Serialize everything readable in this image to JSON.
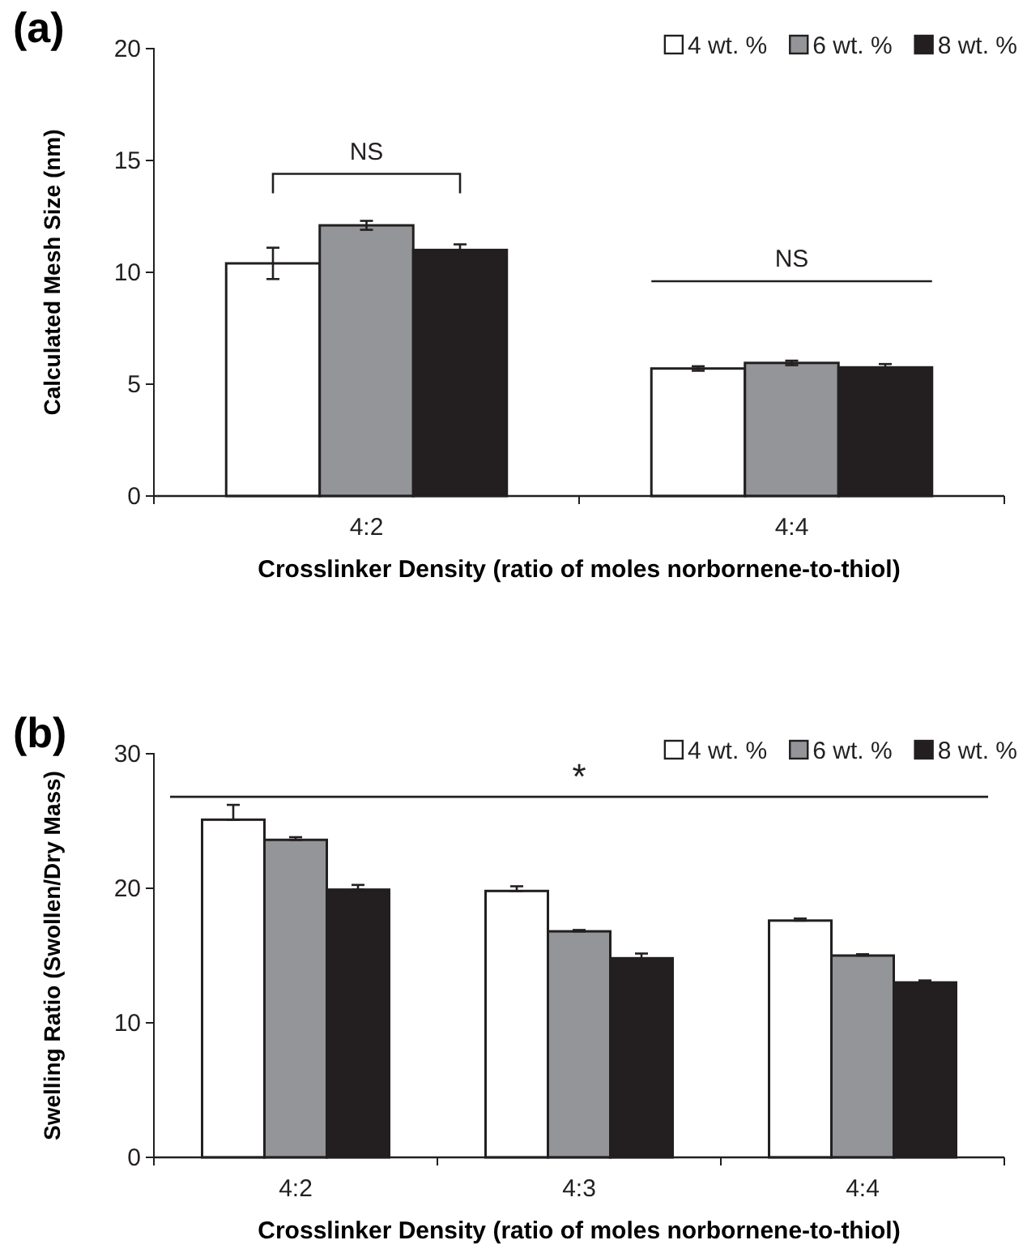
{
  "chart_data": [
    {
      "type": "bar",
      "title": "(a)",
      "xlabel": "Crosslinker Density (ratio of moles norbornene-to-thiol)",
      "ylabel": "Calculated Mesh Size (nm)",
      "categories": [
        "4:2",
        "4:4"
      ],
      "series": [
        {
          "name": "4 wt. %",
          "color": "#ffffff",
          "values": [
            10.4,
            5.7
          ],
          "errors": [
            0.7,
            0.1
          ]
        },
        {
          "name": "6 wt. %",
          "color": "#939598",
          "values": [
            12.1,
            5.95
          ],
          "errors": [
            0.2,
            0.1
          ]
        },
        {
          "name": "8 wt. %",
          "color": "#231f20",
          "values": [
            11.0,
            5.75
          ],
          "errors": [
            0.25,
            0.15
          ]
        }
      ],
      "ylim": [
        0,
        20
      ],
      "yticks": [
        0,
        5,
        10,
        15,
        20
      ],
      "legend": "top right",
      "grid": false,
      "annotations": [
        "NS",
        "NS"
      ]
    },
    {
      "type": "bar",
      "title": "(b)",
      "xlabel": "Crosslinker Density (ratio of moles norbornene-to-thiol)",
      "ylabel": "Swelling Ratio (Swollen/Dry Mass)",
      "categories": [
        "4:2",
        "4:3",
        "4:4"
      ],
      "series": [
        {
          "name": "4 wt. %",
          "color": "#ffffff",
          "values": [
            25.1,
            19.8,
            17.6
          ],
          "errors": [
            [
              25.1,
              26.2
            ],
            [
              19.8,
              20.15
            ],
            [
              17.6,
              17.75
            ]
          ]
        },
        {
          "name": "6 wt. %",
          "color": "#939598",
          "values": [
            23.6,
            16.8,
            15.0
          ],
          "errors": [
            [
              23.6,
              23.8
            ],
            [
              16.8,
              16.9
            ],
            [
              15.0,
              15.1
            ]
          ]
        },
        {
          "name": "8 wt. %",
          "color": "#231f20",
          "values": [
            19.9,
            14.8,
            13.0
          ],
          "errors": [
            [
              19.9,
              20.25
            ],
            [
              14.8,
              15.15
            ],
            [
              13.0,
              13.15
            ]
          ]
        }
      ],
      "ylim": [
        0,
        30
      ],
      "yticks": [
        0,
        10,
        20,
        30
      ],
      "legend": "top right",
      "grid": false,
      "ref_lines": [
        {
          "axis": "y",
          "value": 26.8,
          "label": "*"
        }
      ]
    }
  ]
}
